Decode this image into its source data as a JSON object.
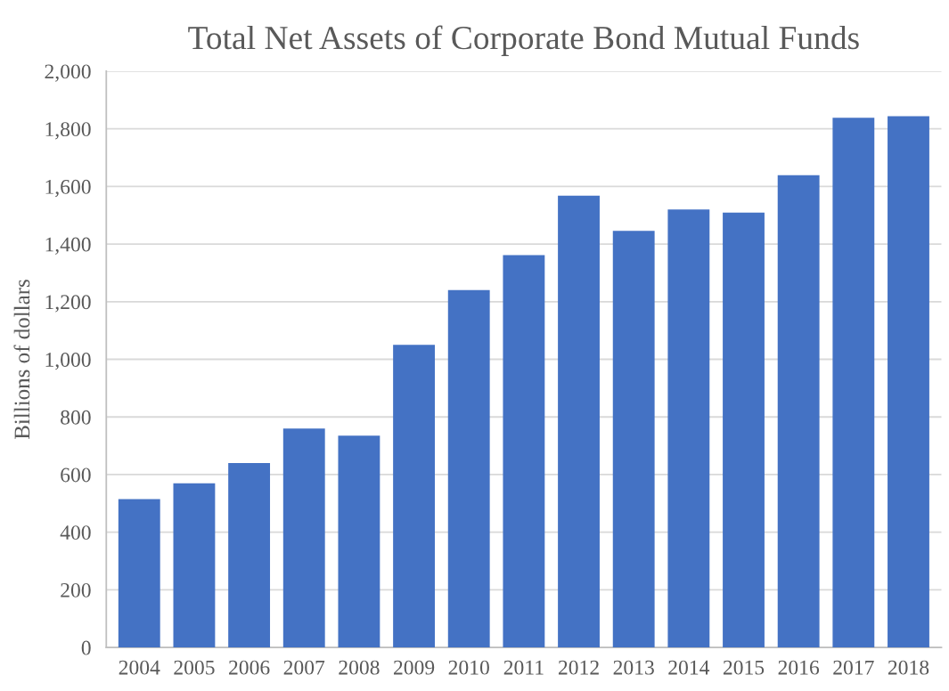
{
  "chart_data": {
    "type": "bar",
    "title": "Total Net Assets of Corporate Bond Mutual Funds",
    "ylabel": "Billions of dollars",
    "categories": [
      "2004",
      "2005",
      "2006",
      "2007",
      "2008",
      "2009",
      "2010",
      "2011",
      "2012",
      "2013",
      "2014",
      "2015",
      "2016",
      "2017",
      "2018"
    ],
    "values": [
      515,
      570,
      640,
      760,
      735,
      1050,
      1240,
      1362,
      1568,
      1446,
      1520,
      1509,
      1639,
      1838,
      1844
    ],
    "color": "#4472c4",
    "ylim": [
      0,
      2000
    ],
    "yticks": [
      {
        "value": 0,
        "label": "0"
      },
      {
        "value": 200,
        "label": "200"
      },
      {
        "value": 400,
        "label": "400"
      },
      {
        "value": 600,
        "label": "600"
      },
      {
        "value": 800,
        "label": "800"
      },
      {
        "value": 1000,
        "label": "1,000"
      },
      {
        "value": 1200,
        "label": "1,200"
      },
      {
        "value": 1400,
        "label": "1,400"
      },
      {
        "value": 1600,
        "label": "1,600"
      },
      {
        "value": 1800,
        "label": "1,800"
      },
      {
        "value": 2000,
        "label": "2,000"
      }
    ],
    "grid": "y"
  }
}
